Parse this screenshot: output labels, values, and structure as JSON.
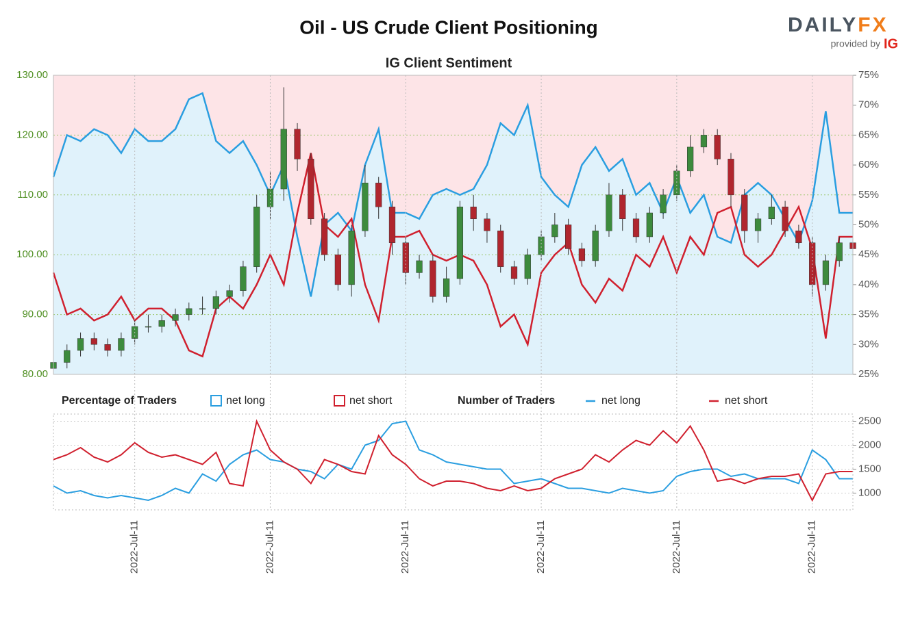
{
  "logo": {
    "brand": "DAILY",
    "brand_accent": "FX",
    "provided_by": "provided by",
    "provider": "IG"
  },
  "chart_data": [
    {
      "type": "candlestick",
      "title": "Oil - US Crude Client Positioning",
      "subtitle": "IG Client Sentiment",
      "legend_title": "Percentage of Traders",
      "open": [
        81,
        82,
        84,
        86,
        85,
        84,
        86,
        88,
        88,
        89,
        90,
        91,
        91,
        93,
        94,
        98,
        108,
        111,
        121,
        116,
        106,
        100,
        95,
        104,
        112,
        108,
        102,
        97,
        99,
        93,
        96,
        108,
        106,
        104,
        98,
        96,
        100,
        103,
        105,
        101,
        99,
        104,
        110,
        106,
        103,
        107,
        110,
        114,
        118,
        120,
        116,
        110,
        104,
        106,
        108,
        104,
        102,
        95,
        99,
        102
      ],
      "high": [
        83,
        85,
        87,
        87,
        86,
        87,
        89,
        90,
        90,
        91,
        92,
        93,
        94,
        95,
        99,
        110,
        114,
        128,
        122,
        117,
        107,
        101,
        105,
        115,
        113,
        109,
        103,
        100,
        100,
        98,
        109,
        110,
        107,
        105,
        99,
        101,
        104,
        107,
        106,
        102,
        105,
        112,
        111,
        107,
        108,
        111,
        115,
        120,
        121,
        121,
        117,
        111,
        107,
        110,
        109,
        105,
        103,
        100,
        103,
        103
      ],
      "low": [
        80,
        81,
        83,
        84,
        83,
        83,
        85,
        87,
        87,
        88,
        89,
        90,
        90,
        92,
        93,
        97,
        106,
        109,
        114,
        105,
        99,
        94,
        93,
        103,
        106,
        100,
        95,
        96,
        92,
        92,
        95,
        104,
        102,
        97,
        95,
        95,
        99,
        102,
        100,
        98,
        98,
        103,
        104,
        102,
        102,
        106,
        109,
        113,
        117,
        115,
        108,
        102,
        102,
        105,
        103,
        101,
        93,
        94,
        98,
        100
      ],
      "close": [
        82,
        84,
        86,
        85,
        84,
        86,
        88,
        88,
        89,
        90,
        91,
        91,
        93,
        94,
        98,
        108,
        111,
        121,
        116,
        106,
        100,
        95,
        104,
        112,
        108,
        102,
        97,
        99,
        93,
        96,
        108,
        106,
        104,
        98,
        96,
        100,
        103,
        105,
        101,
        99,
        104,
        110,
        106,
        103,
        107,
        110,
        114,
        118,
        120,
        116,
        110,
        104,
        106,
        108,
        104,
        102,
        95,
        99,
        102,
        101
      ],
      "up_color": "#3d8b3d",
      "down_color": "#b0262e",
      "ylim": [
        80,
        130
      ],
      "yticks": [
        {
          "value": 80,
          "label": "80.00"
        },
        {
          "value": 90,
          "label": "90.00"
        },
        {
          "value": 100,
          "label": "100.00"
        },
        {
          "value": 110,
          "label": "110.00"
        },
        {
          "value": 120,
          "label": "120.00"
        },
        {
          "value": 130,
          "label": "130.00"
        }
      ],
      "y2lim": [
        25,
        75
      ],
      "y2ticks": [
        {
          "value": 25,
          "label": "25%"
        },
        {
          "value": 30,
          "label": "30%"
        },
        {
          "value": 35,
          "label": "35%"
        },
        {
          "value": 40,
          "label": "40%"
        },
        {
          "value": 45,
          "label": "45%"
        },
        {
          "value": 50,
          "label": "50%"
        },
        {
          "value": 55,
          "label": "55%"
        },
        {
          "value": 60,
          "label": "60%"
        },
        {
          "value": 65,
          "label": "65%"
        },
        {
          "value": 70,
          "label": "70%"
        },
        {
          "value": 75,
          "label": "75%"
        }
      ],
      "grid": true,
      "series": [
        {
          "name": "net long",
          "color": "#2a9ee0",
          "axis": "y2",
          "values": [
            58,
            65,
            64,
            66,
            65,
            62,
            66,
            64,
            64,
            66,
            71,
            72,
            64,
            62,
            64,
            60,
            55,
            60,
            48,
            38,
            50,
            52,
            49,
            60,
            66,
            52,
            52,
            51,
            55,
            56,
            55,
            56,
            60,
            67,
            65,
            70,
            58,
            55,
            53,
            60,
            63,
            59,
            61,
            55,
            57,
            52,
            58,
            52,
            55,
            48,
            47,
            55,
            57,
            55,
            51,
            47,
            54,
            69,
            52,
            52
          ]
        },
        {
          "name": "net short",
          "color": "#d0202e",
          "axis": "y2",
          "values": [
            42,
            35,
            36,
            34,
            35,
            38,
            34,
            36,
            36,
            34,
            29,
            28,
            36,
            38,
            36,
            40,
            45,
            40,
            52,
            62,
            50,
            48,
            51,
            40,
            34,
            48,
            48,
            49,
            45,
            44,
            45,
            44,
            40,
            33,
            35,
            30,
            42,
            45,
            47,
            40,
            37,
            41,
            39,
            45,
            43,
            48,
            42,
            48,
            45,
            52,
            53,
            45,
            43,
            45,
            49,
            53,
            46,
            31,
            48,
            48
          ]
        }
      ]
    },
    {
      "type": "line",
      "legend_title": "Number of Traders",
      "categories": [
        null,
        null,
        null,
        null,
        null,
        null,
        "2022-Jul-11",
        null,
        null,
        null,
        null,
        null,
        null,
        null,
        null,
        null,
        "2022-Jul-11",
        null,
        null,
        null,
        null,
        null,
        null,
        null,
        null,
        null,
        "2022-Jul-11",
        null,
        null,
        null,
        null,
        null,
        null,
        null,
        null,
        null,
        "2022-Jul-11",
        null,
        null,
        null,
        null,
        null,
        null,
        null,
        null,
        null,
        "2022-Jul-11",
        null,
        null,
        null,
        null,
        null,
        null,
        null,
        null,
        null,
        "2022-Jul-11",
        null,
        null,
        null
      ],
      "ylim": [
        650,
        2650
      ],
      "yticks": [
        1000,
        1500,
        2000,
        2500
      ],
      "grid": true,
      "series": [
        {
          "name": "net long",
          "color": "#2a9ee0",
          "values": [
            1150,
            1000,
            1050,
            950,
            900,
            950,
            900,
            850,
            950,
            1100,
            1000,
            1400,
            1250,
            1600,
            1800,
            1900,
            1700,
            1650,
            1500,
            1450,
            1300,
            1600,
            1500,
            2000,
            2100,
            2450,
            2500,
            1900,
            1800,
            1650,
            1600,
            1550,
            1500,
            1500,
            1200,
            1250,
            1300,
            1200,
            1100,
            1100,
            1050,
            1000,
            1100,
            1050,
            1000,
            1050,
            1350,
            1450,
            1500,
            1500,
            1350,
            1400,
            1300,
            1300,
            1300,
            1200,
            1900,
            1700,
            1300,
            1300
          ]
        },
        {
          "name": "net short",
          "color": "#d0202e",
          "values": [
            1700,
            1800,
            1950,
            1750,
            1650,
            1800,
            2050,
            1850,
            1750,
            1800,
            1700,
            1600,
            1850,
            1200,
            1150,
            2500,
            1900,
            1650,
            1500,
            1200,
            1700,
            1600,
            1450,
            1400,
            2200,
            1800,
            1600,
            1300,
            1150,
            1250,
            1250,
            1200,
            1100,
            1050,
            1150,
            1050,
            1100,
            1300,
            1400,
            1500,
            1800,
            1650,
            1900,
            2100,
            2000,
            2300,
            2050,
            2400,
            1900,
            1250,
            1300,
            1200,
            1300,
            1350,
            1350,
            1400,
            850,
            1400,
            1450,
            1450
          ]
        }
      ]
    }
  ]
}
